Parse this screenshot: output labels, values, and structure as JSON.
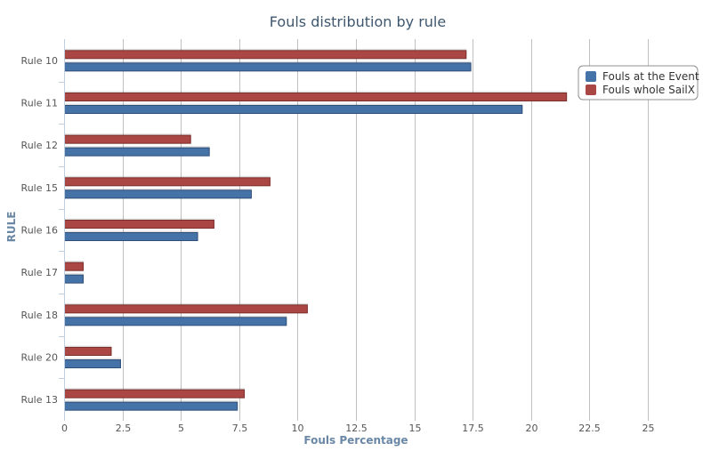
{
  "chart_data": {
    "type": "bar",
    "orientation": "horizontal",
    "title": "Fouls distribution by rule",
    "xlabel": "Fouls Percentage",
    "ylabel": "RULE",
    "categories": [
      "Rule 10",
      "Rule 11",
      "Rule 12",
      "Rule 15",
      "Rule 16",
      "Rule 17",
      "Rule 18",
      "Rule 20",
      "Rule 13"
    ],
    "series": [
      {
        "name": "Fouls at the Event",
        "color": "#4572a7",
        "values": [
          17.4,
          19.6,
          6.2,
          8.0,
          5.7,
          0.8,
          9.5,
          2.4,
          7.4
        ]
      },
      {
        "name": "Fouls whole SailX",
        "color": "#aa4643",
        "values": [
          17.2,
          21.5,
          5.4,
          8.8,
          6.4,
          0.8,
          10.4,
          2.0,
          7.7
        ]
      }
    ],
    "xlim": [
      0,
      25
    ],
    "xticks": [
      "0",
      "2.5",
      "5",
      "7.5",
      "10",
      "12.5",
      "15",
      "17.5",
      "20",
      "22.5",
      "25"
    ],
    "grid": true,
    "legend_position": "top-right"
  }
}
